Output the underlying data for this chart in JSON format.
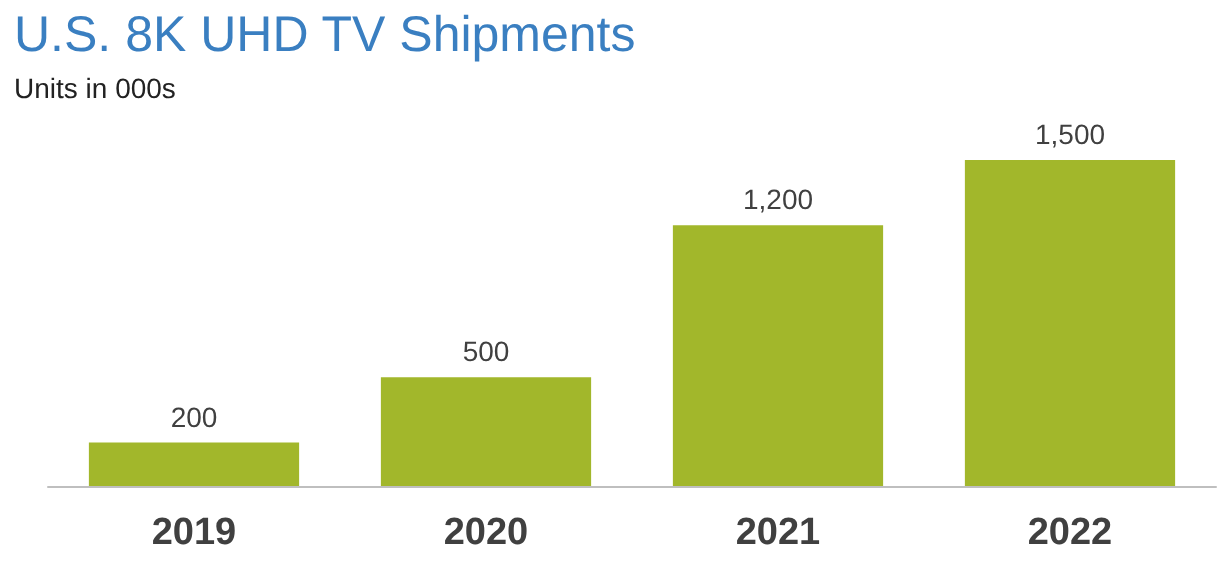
{
  "chart_data": {
    "type": "bar",
    "title": "U.S. 8K UHD TV Shipments",
    "subtitle": "Units in 000s",
    "categories": [
      "2019",
      "2020",
      "2021",
      "2022"
    ],
    "values": [
      200,
      500,
      1200,
      1500
    ],
    "color": "#a2b72b",
    "ylim": [
      0,
      1500
    ],
    "tick_labels": "x",
    "value_labels": [
      "200",
      "500",
      "1,200",
      "1,500"
    ]
  }
}
